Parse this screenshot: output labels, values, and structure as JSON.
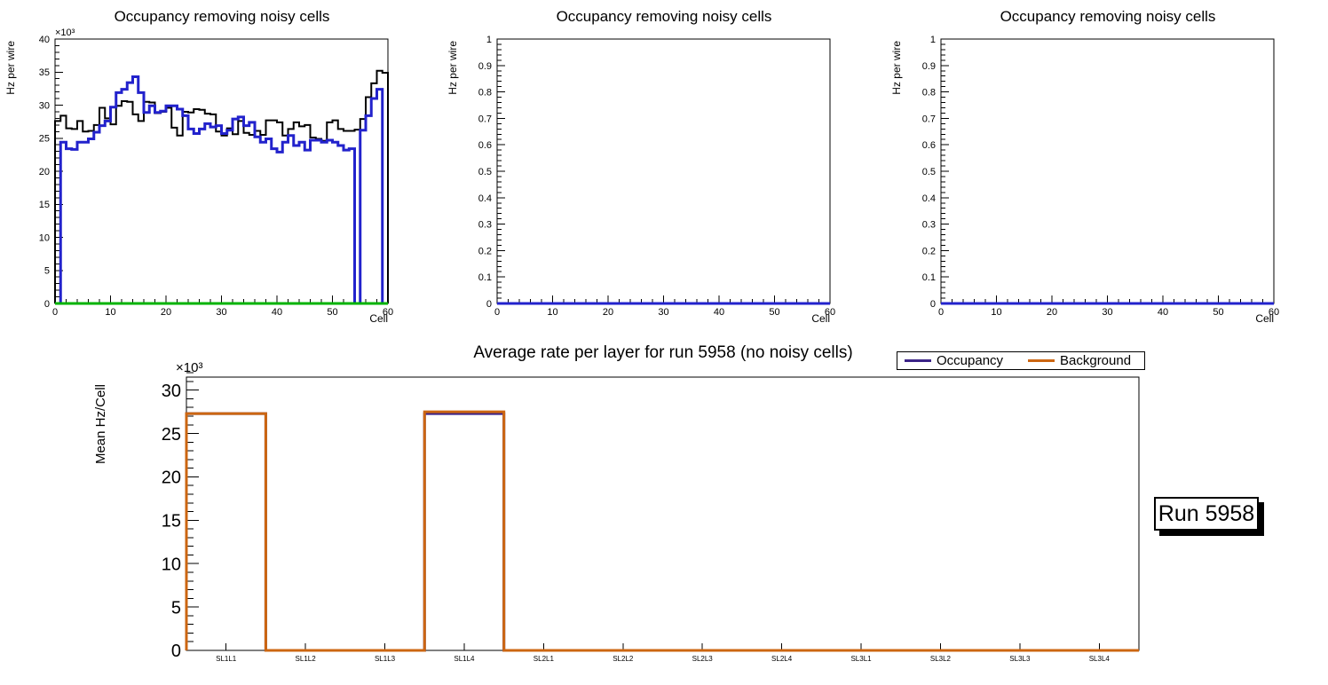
{
  "colors": {
    "black": "#000000",
    "blue": "#2222cc",
    "green": "#00b300",
    "violet": "#3b2387",
    "orange": "#cc6611",
    "frame": "#000000",
    "background": "#ffffff"
  },
  "run_label": {
    "text": "Run 5958"
  },
  "chart_data": [
    {
      "id": "occupancy-sl1",
      "type": "step-histogram",
      "title": "Occupancy removing noisy cells",
      "xlabel": "Cell",
      "ylabel": "Hz per wire",
      "y_exponent": "×10³",
      "xlim": [
        0,
        60
      ],
      "ylim": [
        0,
        40000
      ],
      "grid": false,
      "xticks": {
        "values": [
          0,
          10,
          20,
          30,
          40,
          50,
          60
        ],
        "labels": [
          "0",
          "10",
          "20",
          "30",
          "40",
          "50",
          "60"
        ],
        "minor_step": 2
      },
      "yticks": {
        "values": [
          0,
          5000,
          10000,
          15000,
          20000,
          25000,
          30000,
          35000,
          40000
        ],
        "labels": [
          "0",
          "5",
          "10",
          "15",
          "20",
          "25",
          "30",
          "35",
          "40"
        ],
        "minor_step": 1000
      },
      "series": [
        {
          "name": "rate-black",
          "color": "black",
          "width": 2,
          "values": [
            27600,
            28400,
            26500,
            26400,
            27600,
            26000,
            26100,
            27000,
            29600,
            28000,
            27100,
            29900,
            30600,
            30500,
            28600,
            27600,
            30500,
            30400,
            28800,
            29000,
            29600,
            26600,
            25400,
            29000,
            28900,
            29400,
            29300,
            28700,
            28600,
            26000,
            25400,
            26500,
            25600,
            27600,
            25800,
            25500,
            26100,
            25500,
            27700,
            27700,
            27400,
            25400,
            26400,
            27400,
            26800,
            27000,
            25100,
            24900,
            24600,
            27400,
            27700,
            26400,
            26100,
            26100,
            26300,
            27900,
            31200,
            33300,
            35200,
            34900
          ]
        },
        {
          "name": "rate-blue",
          "color": "blue",
          "width": 3,
          "values": [
            0,
            24400,
            23400,
            23300,
            24400,
            24400,
            24900,
            25900,
            26900,
            27600,
            29700,
            31900,
            32400,
            33400,
            34300,
            31900,
            28900,
            29900,
            28900,
            29100,
            29900,
            29900,
            29400,
            28400,
            26400,
            25700,
            26400,
            27200,
            26700,
            26900,
            25700,
            26200,
            27900,
            28200,
            26900,
            27400,
            25200,
            24400,
            24900,
            23400,
            22900,
            24400,
            25400,
            23900,
            24400,
            23200,
            24700,
            24700,
            24400,
            24700,
            24400,
            23900,
            23200,
            23400,
            0,
            26200,
            28400,
            31000,
            32400,
            0
          ]
        },
        {
          "name": "noisy-cells-green",
          "color": "green",
          "width": 3,
          "constant": 0,
          "n": 60
        }
      ]
    },
    {
      "id": "occupancy-sl2",
      "type": "step-histogram",
      "title": "Occupancy removing noisy cells",
      "xlabel": "Cell",
      "ylabel": "Hz per wire",
      "xlim": [
        0,
        60
      ],
      "ylim": [
        0,
        1
      ],
      "grid": false,
      "xticks": {
        "values": [
          0,
          10,
          20,
          30,
          40,
          50,
          60
        ],
        "labels": [
          "0",
          "10",
          "20",
          "30",
          "40",
          "50",
          "60"
        ],
        "minor_step": 2
      },
      "yticks": {
        "values": [
          0,
          0.1,
          0.2,
          0.3,
          0.4,
          0.5,
          0.6,
          0.7,
          0.8,
          0.9,
          1
        ],
        "labels": [
          "0",
          "0.1",
          "0.2",
          "0.3",
          "0.4",
          "0.5",
          "0.6",
          "0.7",
          "0.8",
          "0.9",
          "1"
        ],
        "minor_step": 0.02
      },
      "series": [
        {
          "name": "rate-blue-empty",
          "color": "blue",
          "width": 3,
          "constant": 0,
          "n": 60
        }
      ]
    },
    {
      "id": "occupancy-sl3",
      "type": "step-histogram",
      "title": "Occupancy removing noisy cells",
      "xlabel": "Cell",
      "ylabel": "Hz per wire",
      "xlim": [
        0,
        60
      ],
      "ylim": [
        0,
        1
      ],
      "grid": false,
      "xticks": {
        "values": [
          0,
          10,
          20,
          30,
          40,
          50,
          60
        ],
        "labels": [
          "0",
          "10",
          "20",
          "30",
          "40",
          "50",
          "60"
        ],
        "minor_step": 2
      },
      "yticks": {
        "values": [
          0,
          0.1,
          0.2,
          0.3,
          0.4,
          0.5,
          0.6,
          0.7,
          0.8,
          0.9,
          1
        ],
        "labels": [
          "0",
          "0.1",
          "0.2",
          "0.3",
          "0.4",
          "0.5",
          "0.6",
          "0.7",
          "0.8",
          "0.9",
          "1"
        ],
        "minor_step": 0.02
      },
      "series": [
        {
          "name": "rate-blue-empty",
          "color": "blue",
          "width": 3,
          "constant": 0,
          "n": 60
        }
      ]
    },
    {
      "id": "average-rate-per-layer",
      "type": "step-histogram-categories",
      "title": "Average rate per layer for run 5958 (no noisy cells)",
      "ylabel": "Mean Hz/Cell",
      "y_exponent": "×10³",
      "categories": [
        "SL1L1",
        "SL1L2",
        "SL1L3",
        "SL1L4",
        "SL2L1",
        "SL2L2",
        "SL2L3",
        "SL2L4",
        "SL3L1",
        "SL3L2",
        "SL3L3",
        "SL3L4"
      ],
      "ylim": [
        0,
        31500
      ],
      "grid": false,
      "yticks": {
        "values": [
          0,
          5000,
          10000,
          15000,
          20000,
          25000,
          30000
        ],
        "labels": [
          "0",
          "5",
          "10",
          "15",
          "20",
          "25",
          "30"
        ],
        "minor_step": 1000
      },
      "legend": [
        {
          "label": "Occupancy",
          "color": "violet"
        },
        {
          "label": "Background",
          "color": "orange"
        }
      ],
      "legend_position": "top-right",
      "series": [
        {
          "name": "Occupancy",
          "color": "violet",
          "width": 3,
          "values": [
            27300,
            0,
            0,
            27300,
            0,
            0,
            0,
            0,
            0,
            0,
            0,
            0
          ]
        },
        {
          "name": "Background",
          "color": "orange",
          "width": 3,
          "values": [
            27300,
            0,
            0,
            27500,
            0,
            0,
            0,
            0,
            0,
            0,
            0,
            0
          ]
        }
      ],
      "annotation": "Run 5958"
    }
  ]
}
